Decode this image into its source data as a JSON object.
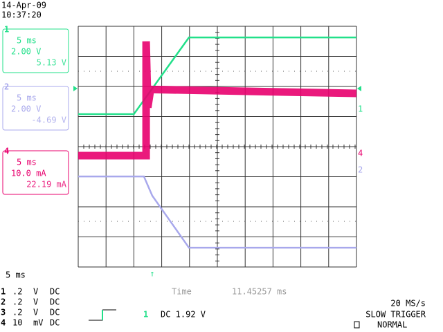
{
  "header": {
    "date": "14-Apr-09",
    "time": "10:37:20"
  },
  "channel_boxes": [
    {
      "channel": "1",
      "timebase": "5 ms",
      "scale": "2.00 V",
      "reading": "5.13 V"
    },
    {
      "channel": "2",
      "timebase": "5 ms",
      "scale": "2.00 V",
      "reading": "-4.69 V"
    },
    {
      "channel": "4",
      "timebase": "5 ms",
      "scale": "10.0 mA",
      "reading": "22.19 mA"
    }
  ],
  "chart_data": {
    "type": "line",
    "xlim": [
      0,
      50
    ],
    "ylim": [
      -4,
      4
    ],
    "xticks": [
      0,
      5,
      10,
      15,
      20,
      25,
      30,
      35,
      40,
      45,
      50
    ],
    "yticks": [
      -4,
      -3,
      -2,
      -1,
      0,
      1,
      2,
      3,
      4
    ],
    "grid": true,
    "series": [
      {
        "name": "1",
        "color": "#22e08a",
        "x": [
          0,
          10,
          19.9,
          50
        ],
        "values": [
          1.08,
          1.08,
          3.63,
          3.63
        ]
      },
      {
        "name": "4",
        "color": "#e8006e",
        "x": [
          0,
          12.2,
          12.2,
          12.5,
          13,
          50
        ],
        "values": [
          -0.3,
          -0.3,
          3.5,
          1.3,
          1.9,
          1.77
        ]
      },
      {
        "name": "2",
        "color": "#a8a8ec",
        "x": [
          0,
          11.8,
          13.3,
          19.9,
          50
        ],
        "values": [
          -0.99,
          -0.99,
          -1.63,
          -3.36,
          -3.36
        ]
      }
    ]
  },
  "timebase": "5 ms",
  "cursor": {
    "label": "Time",
    "value": "11.45257 ms"
  },
  "channel_settings": [
    {
      "channel": "1",
      "scale": ".2",
      "unit": "V",
      "coupling": "DC"
    },
    {
      "channel": "2",
      "scale": ".2",
      "unit": "V",
      "coupling": "DC"
    },
    {
      "channel": "3",
      "scale": ".2",
      "unit": "V",
      "coupling": "DC"
    },
    {
      "channel": "4",
      "scale": "10",
      "unit": "mV",
      "coupling": "DC"
    }
  ],
  "trigger": {
    "source": "1",
    "level": "DC 1.92 V"
  },
  "acquisition": {
    "rate": "20 MS/s",
    "mode": "SLOW TRIGGER",
    "state": "NORMAL"
  }
}
